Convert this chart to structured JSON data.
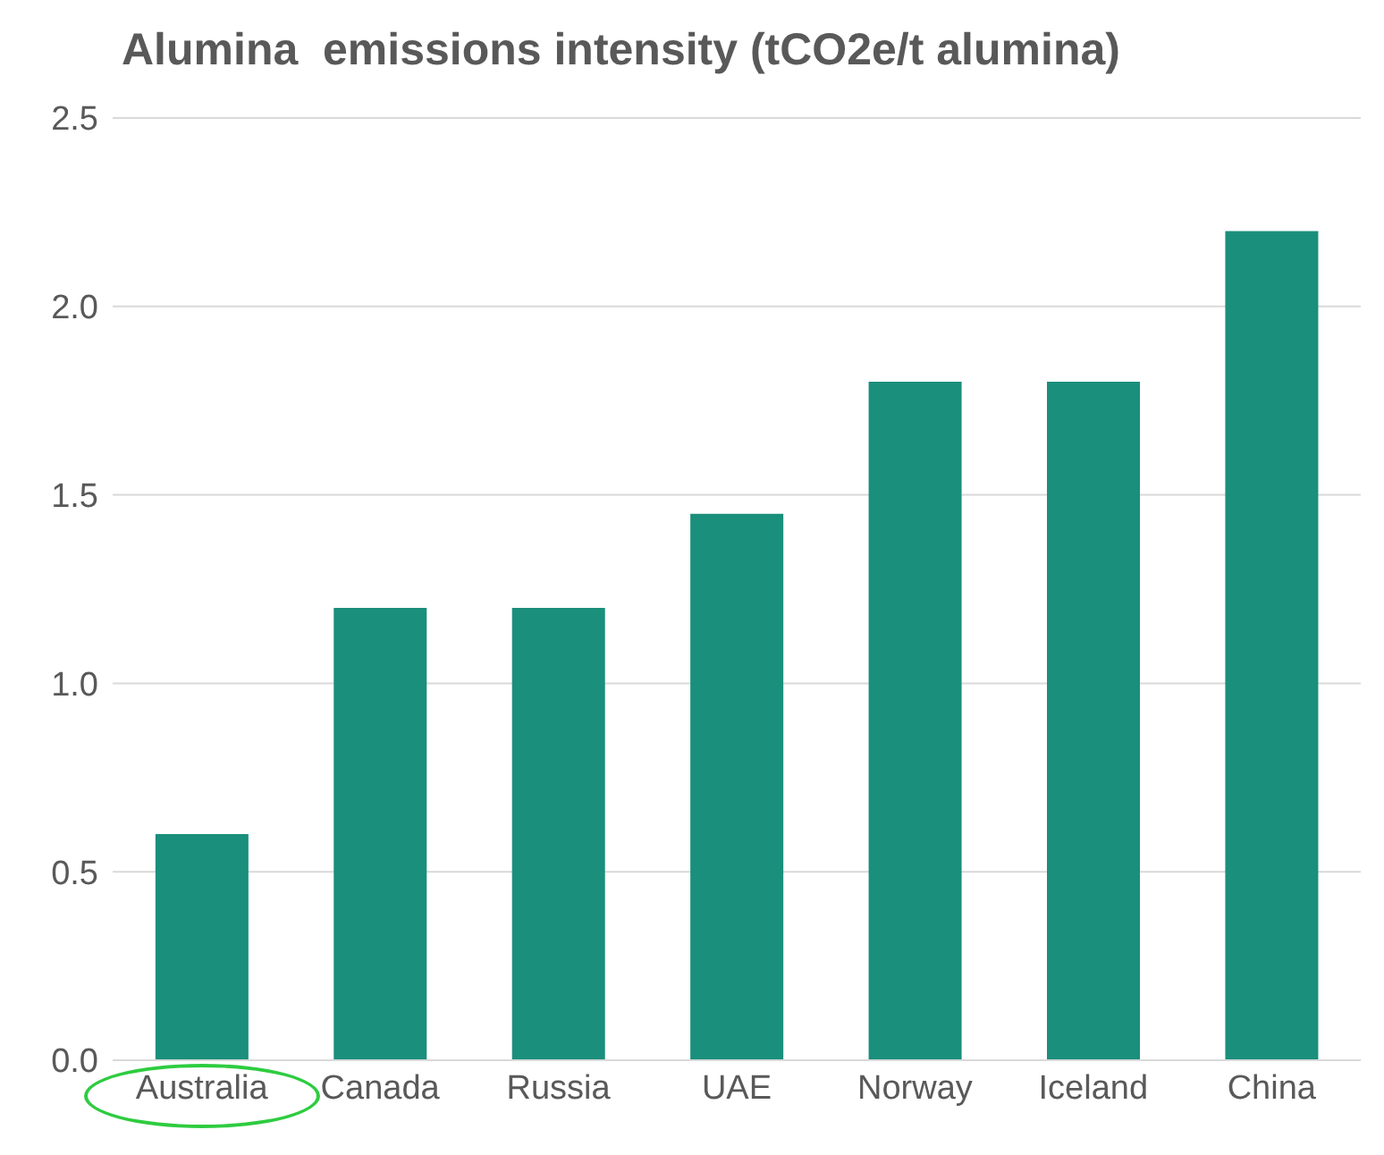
{
  "chart_data": {
    "type": "bar",
    "title": "Alumina  emissions intensity (tCO2e/t alumina)",
    "categories": [
      "Australia",
      "Canada",
      "Russia",
      "UAE",
      "Norway",
      "Iceland",
      "China"
    ],
    "values": [
      0.6,
      1.2,
      1.2,
      1.45,
      1.8,
      1.8,
      2.2
    ],
    "color": "#1a8f7b",
    "ylim": [
      0,
      2.5
    ],
    "yticks": [
      {
        "value": 0,
        "label": "0.0"
      },
      {
        "value": 0.5,
        "label": "0.5"
      },
      {
        "value": 1,
        "label": "1.0"
      },
      {
        "value": 1.5,
        "label": "1.5"
      },
      {
        "value": 2,
        "label": "2.0"
      },
      {
        "value": 2.5,
        "label": "2.5"
      }
    ],
    "grid": "y"
  }
}
